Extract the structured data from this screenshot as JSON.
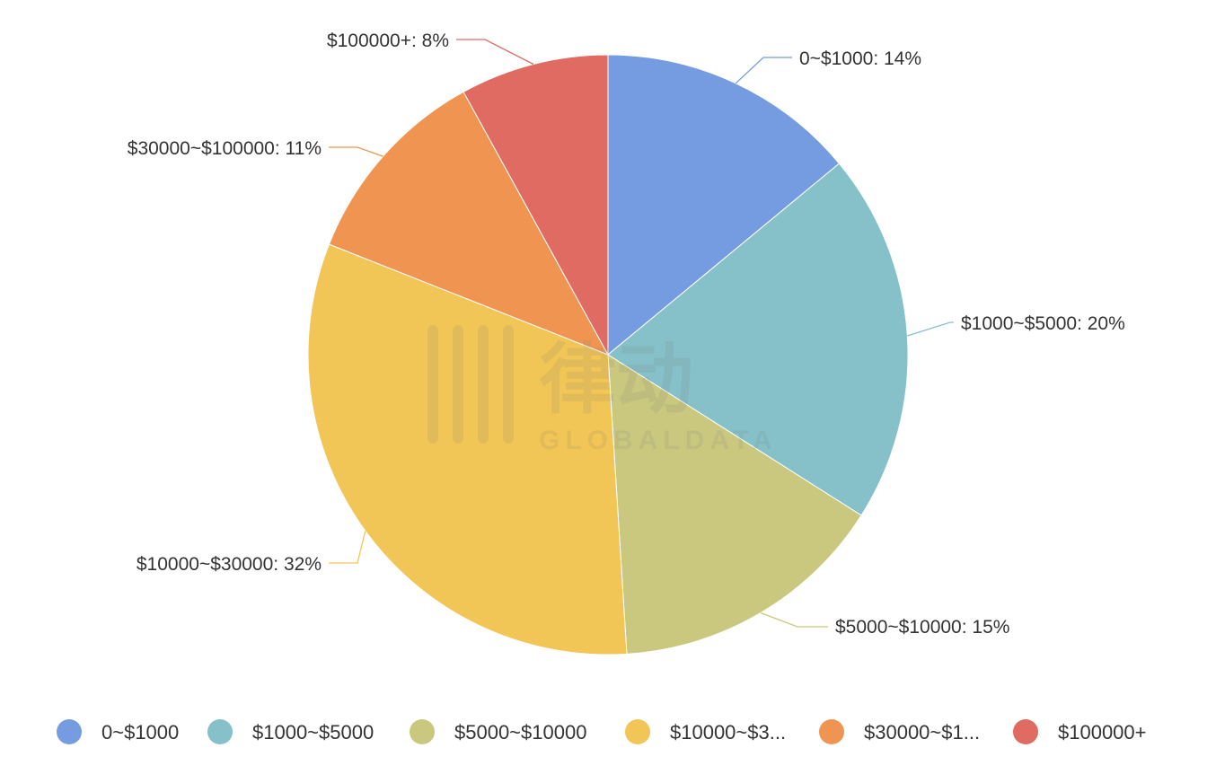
{
  "chart_data": {
    "type": "pie",
    "title": "",
    "categories": [
      "0~$1000",
      "$1000~$5000",
      "$5000~$10000",
      "$10000~$30000",
      "$30000~$100000",
      "$100000+"
    ],
    "values": [
      14,
      20,
      15,
      32,
      11,
      8
    ],
    "unit": "%",
    "colors": [
      "#759ce1",
      "#86c0c8",
      "#c9c87e",
      "#f2c656",
      "#f09551",
      "#e06b62"
    ],
    "slice_labels": [
      "0~$1000: 14%",
      "$1000~$5000: 20%",
      "$5000~$10000: 15%",
      "$10000~$30000: 32%",
      "$30000~$100000: 11%",
      "$100000+: 8%"
    ],
    "legend": {
      "placement": "bottom",
      "items": [
        "0~$1000",
        "$1000~$5000",
        "$5000~$10000",
        "$10000~$3...",
        "$30000~$1...",
        "$100000+"
      ]
    },
    "watermark": {
      "text": "GLOBALDATA",
      "logo": "律动"
    }
  }
}
